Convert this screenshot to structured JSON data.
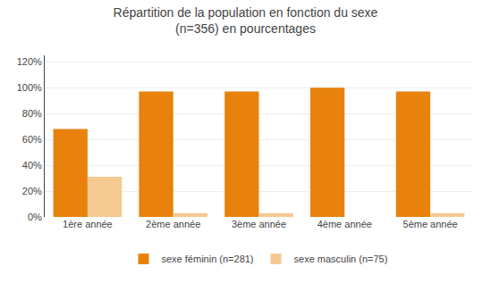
{
  "chart_data": {
    "type": "bar",
    "title": "Répartition de la population en fonction du sexe\n(n=356) en pourcentages",
    "categories": [
      "1ère année",
      "2ème année",
      "3ème année",
      "4ème année",
      "5ème année"
    ],
    "series": [
      {
        "name": "sexe féminin (n=281)",
        "color": "#E8820C",
        "values": [
          68,
          97,
          97,
          100,
          97
        ]
      },
      {
        "name": "sexe masculin (n=75)",
        "color": "#F5C992",
        "values": [
          31,
          3,
          3,
          0,
          3
        ]
      }
    ],
    "ylim": [
      0,
      125
    ],
    "yticks": [
      {
        "value": 0,
        "label": "0%"
      },
      {
        "value": 20,
        "label": "20%"
      },
      {
        "value": 40,
        "label": "40%"
      },
      {
        "value": 60,
        "label": "60%"
      },
      {
        "value": 80,
        "label": "80%"
      },
      {
        "value": 100,
        "label": "100%"
      },
      {
        "value": 120,
        "label": "120%"
      }
    ],
    "grid": true,
    "legend": "bottom"
  }
}
